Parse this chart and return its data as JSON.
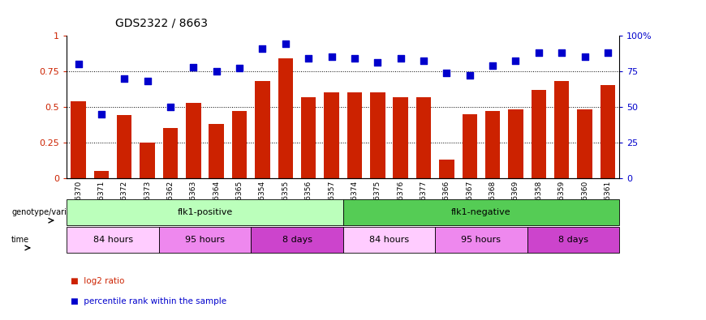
{
  "title": "GDS2322 / 8663",
  "categories": [
    "GSM86370",
    "GSM86371",
    "GSM86372",
    "GSM86373",
    "GSM86362",
    "GSM86363",
    "GSM86364",
    "GSM86365",
    "GSM86354",
    "GSM86355",
    "GSM86356",
    "GSM86357",
    "GSM86374",
    "GSM86375",
    "GSM86376",
    "GSM86377",
    "GSM86366",
    "GSM86367",
    "GSM86368",
    "GSM86369",
    "GSM86358",
    "GSM86359",
    "GSM86360",
    "GSM86361"
  ],
  "bar_values": [
    0.54,
    0.05,
    0.44,
    0.25,
    0.35,
    0.53,
    0.38,
    0.47,
    0.68,
    0.84,
    0.57,
    0.6,
    0.6,
    0.6,
    0.57,
    0.57,
    0.13,
    0.45,
    0.47,
    0.48,
    0.62,
    0.68,
    0.48,
    0.65
  ],
  "dot_values": [
    0.8,
    0.45,
    0.7,
    0.68,
    0.5,
    0.78,
    0.75,
    0.77,
    0.91,
    0.94,
    0.84,
    0.85,
    0.84,
    0.81,
    0.84,
    0.82,
    0.74,
    0.72,
    0.79,
    0.82,
    0.88,
    0.88,
    0.85,
    0.88
  ],
  "bar_color": "#cc2200",
  "dot_color": "#0000cc",
  "ylim": [
    0,
    1
  ],
  "yticks_left": [
    0,
    0.25,
    0.5,
    0.75,
    1.0
  ],
  "ytick_labels_left": [
    "0",
    "0.25",
    "0.5",
    "0.75",
    "1"
  ],
  "ytick_labels_right": [
    "0",
    "25",
    "50",
    "75",
    "100%"
  ],
  "hlines": [
    0.25,
    0.5,
    0.75
  ],
  "genotype_groups": [
    {
      "text": "flk1-positive",
      "start": 0,
      "end": 11,
      "color": "#bbffbb"
    },
    {
      "text": "flk1-negative",
      "start": 12,
      "end": 23,
      "color": "#55cc55"
    }
  ],
  "time_groups": [
    {
      "text": "84 hours",
      "start": 0,
      "end": 3,
      "color": "#ffccff"
    },
    {
      "text": "95 hours",
      "start": 4,
      "end": 7,
      "color": "#ee88ee"
    },
    {
      "text": "8 days",
      "start": 8,
      "end": 11,
      "color": "#cc44cc"
    },
    {
      "text": "84 hours",
      "start": 12,
      "end": 15,
      "color": "#ffccff"
    },
    {
      "text": "95 hours",
      "start": 16,
      "end": 19,
      "color": "#ee88ee"
    },
    {
      "text": "8 days",
      "start": 20,
      "end": 23,
      "color": "#cc44cc"
    }
  ],
  "legend_items": [
    {
      "color": "#cc2200",
      "label": "log2 ratio"
    },
    {
      "color": "#0000cc",
      "label": "percentile rank within the sample"
    }
  ],
  "bar_width": 0.65,
  "dot_size": 35,
  "background_color": "#ffffff"
}
